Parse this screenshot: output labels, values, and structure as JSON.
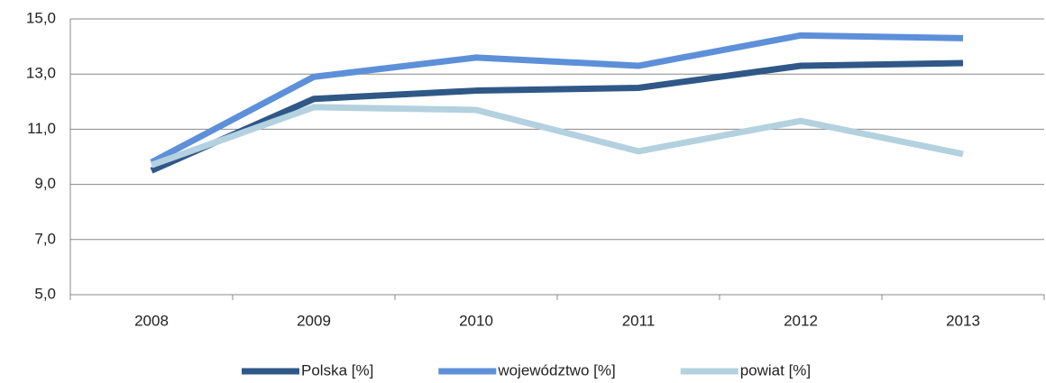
{
  "chart_data": {
    "type": "line",
    "categories": [
      "2008",
      "2009",
      "2010",
      "2011",
      "2012",
      "2013"
    ],
    "series": [
      {
        "name": "Polska [%]",
        "color": "#2f5887",
        "values": [
          9.5,
          12.1,
          12.4,
          12.5,
          13.3,
          13.4
        ]
      },
      {
        "name": "województwo [%]",
        "color": "#5d90d8",
        "values": [
          9.8,
          12.9,
          13.6,
          13.3,
          14.4,
          14.3
        ]
      },
      {
        "name": "powiat [%]",
        "color": "#b3d1df",
        "values": [
          9.7,
          11.8,
          11.7,
          10.2,
          11.3,
          10.1
        ]
      }
    ],
    "ylim": [
      5,
      15
    ],
    "yticks": [
      {
        "value": 5,
        "label": "5,0"
      },
      {
        "value": 7,
        "label": "7,0"
      },
      {
        "value": 9,
        "label": "9,0"
      },
      {
        "value": 11,
        "label": "11,0"
      },
      {
        "value": 13,
        "label": "13,0"
      },
      {
        "value": 15,
        "label": "15,0"
      }
    ],
    "grid": true,
    "legend": "bottom"
  }
}
